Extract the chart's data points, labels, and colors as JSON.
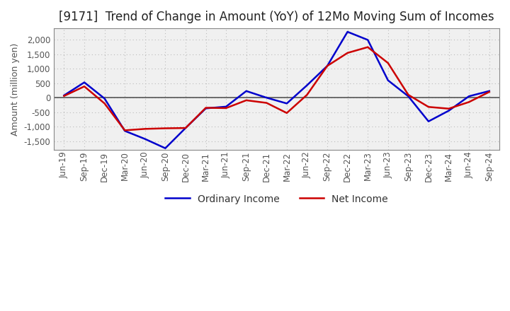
{
  "title": "[9171]  Trend of Change in Amount (YoY) of 12Mo Moving Sum of Incomes",
  "ylabel": "Amount (million yen)",
  "x_labels": [
    "Jun-19",
    "Sep-19",
    "Dec-19",
    "Mar-20",
    "Jun-20",
    "Sep-20",
    "Dec-20",
    "Mar-21",
    "Jun-21",
    "Sep-21",
    "Dec-21",
    "Mar-22",
    "Jun-22",
    "Sep-22",
    "Dec-22",
    "Mar-23",
    "Jun-23",
    "Sep-23",
    "Dec-23",
    "Mar-24",
    "Jun-24",
    "Sep-24"
  ],
  "ordinary_income": [
    80,
    530,
    -30,
    -1150,
    -1430,
    -1750,
    -1050,
    -370,
    -310,
    230,
    0,
    -200,
    430,
    1100,
    2280,
    2000,
    600,
    50,
    -820,
    -450,
    50,
    230
  ],
  "net_income": [
    60,
    390,
    -200,
    -1130,
    -1080,
    -1060,
    -1050,
    -350,
    -360,
    -90,
    -180,
    -530,
    100,
    1100,
    1550,
    1750,
    1200,
    100,
    -320,
    -380,
    -150,
    200
  ],
  "ordinary_color": "#0000cc",
  "net_color": "#cc0000",
  "line_width": 1.8,
  "ylim": [
    -1800,
    2400
  ],
  "yticks": [
    -1500,
    -1000,
    -500,
    0,
    500,
    1000,
    1500,
    2000
  ],
  "plot_bg_color": "#f0f0f0",
  "outer_bg_color": "#ffffff",
  "grid_color": "#bbbbbb",
  "title_fontsize": 12,
  "tick_fontsize": 8.5,
  "ylabel_fontsize": 9,
  "legend_labels": [
    "Ordinary Income",
    "Net Income"
  ],
  "legend_fontsize": 10,
  "zero_line_color": "#555555",
  "spine_color": "#888888",
  "tick_label_color": "#555555"
}
